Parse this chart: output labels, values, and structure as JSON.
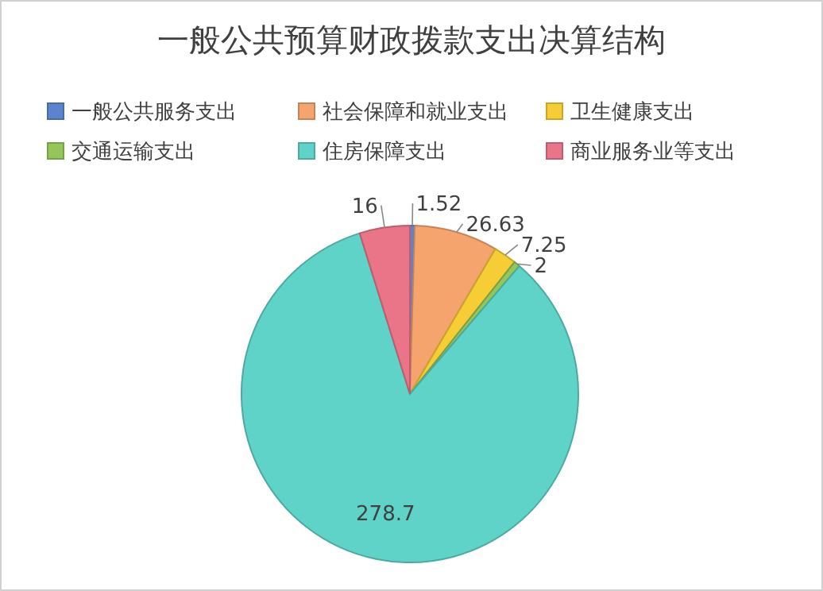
{
  "chart_data": {
    "type": "pie",
    "title": "一般公共预算财政拨款支出决算结构",
    "categories": [
      "一般公共服务支出",
      "社会保障和就业支出",
      "卫生健康支出",
      "交通运输支出",
      "住房保障支出",
      "商业服务业等支出"
    ],
    "values": [
      1.52,
      26.63,
      7.25,
      2,
      278.7,
      16
    ],
    "colors": [
      "#5b84d0",
      "#f4a46c",
      "#f7cd35",
      "#93c75a",
      "#5fd3c7",
      "#ea7488"
    ],
    "data_labels": true,
    "legend": "top"
  }
}
